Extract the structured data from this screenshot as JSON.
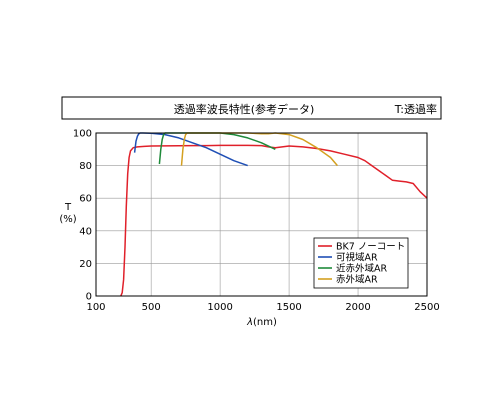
{
  "chart_data": {
    "type": "line",
    "title": "透過率波長特性(参考データ)",
    "subtitle": "T:透過率",
    "xlabel_symbol": "λ",
    "xlabel_unit": "(nm)",
    "ylabel": "T",
    "ylabel_unit": "(%)",
    "xlim": [
      100,
      2500
    ],
    "ylim": [
      0,
      100
    ],
    "x_ticks": [
      100,
      500,
      1000,
      1500,
      2000,
      2500
    ],
    "y_ticks": [
      0,
      20,
      40,
      60,
      80,
      100
    ],
    "grid": true,
    "legend_position": "lower-right",
    "series": [
      {
        "name": "BK7 ノーコート",
        "color": "#e0202a",
        "x": [
          280,
          290,
          300,
          310,
          320,
          330,
          340,
          350,
          370,
          400,
          450,
          500,
          600,
          700,
          800,
          900,
          1000,
          1100,
          1200,
          1300,
          1350,
          1400,
          1450,
          1500,
          1600,
          1700,
          1800,
          1900,
          2000,
          2050,
          2100,
          2150,
          2200,
          2250,
          2300,
          2350,
          2400,
          2450,
          2500
        ],
        "y": [
          0,
          2,
          10,
          30,
          55,
          75,
          85,
          89,
          91,
          91.5,
          91.8,
          92,
          92.1,
          92.2,
          92.3,
          92.3,
          92.4,
          92.4,
          92.4,
          92.3,
          91.5,
          91,
          91.5,
          92,
          91.5,
          90.5,
          89,
          87,
          85,
          83,
          80,
          77,
          74,
          71,
          70.5,
          70,
          69,
          64,
          60
        ]
      },
      {
        "name": "可視域AR",
        "color": "#1f4fb5",
        "x": [
          380,
          390,
          400,
          410,
          420,
          440,
          500,
          600,
          700,
          800,
          900,
          1000,
          1100,
          1200
        ],
        "y": [
          88,
          95,
          98,
          99.5,
          100,
          100,
          99.8,
          99,
          97,
          94,
          91,
          87,
          83,
          80
        ]
      },
      {
        "name": "近赤外域AR",
        "color": "#1f8a3a",
        "x": [
          560,
          570,
          580,
          590,
          600,
          620,
          700,
          800,
          900,
          1000,
          1100,
          1200,
          1300,
          1400
        ],
        "y": [
          81,
          90,
          96,
          99,
          100,
          100,
          100,
          100,
          100,
          100,
          99,
          97,
          94,
          90
        ]
      },
      {
        "name": "赤外域AR",
        "color": "#d4a020",
        "x": [
          720,
          730,
          740,
          750,
          760,
          780,
          900,
          1000,
          1100,
          1200,
          1300,
          1350,
          1400,
          1500,
          1600,
          1700,
          1800,
          1850
        ],
        "y": [
          80,
          90,
          96,
          99,
          100,
          100,
          100,
          100,
          100,
          100,
          99.5,
          99.5,
          100,
          99,
          96,
          91,
          85,
          80
        ]
      }
    ]
  }
}
